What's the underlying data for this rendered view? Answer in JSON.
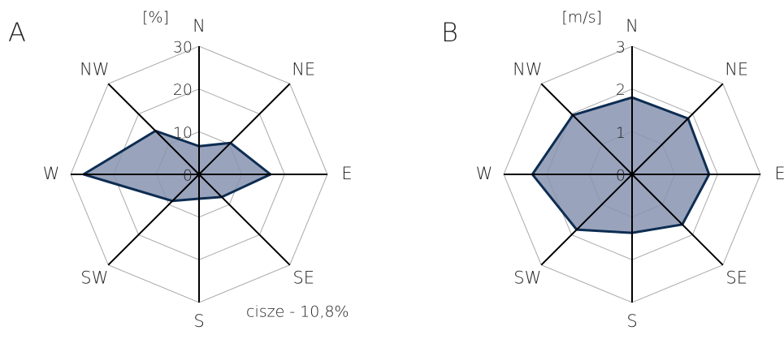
{
  "chart_data": [
    {
      "type": "radar",
      "title": "A",
      "unit": "[%]",
      "categories": [
        "N",
        "NE",
        "E",
        "SE",
        "S",
        "SW",
        "W",
        "NW"
      ],
      "values": [
        6.6,
        10.4,
        16.7,
        7.5,
        5.7,
        8.8,
        27,
        14.4
      ],
      "rlim": [
        0,
        30
      ],
      "rticks": [
        0,
        10,
        20,
        30
      ],
      "color": "#0d2d52",
      "fill": "#8793b0",
      "annotation": "cisze - 10,8%"
    },
    {
      "type": "radar",
      "title": "B",
      "unit": "[m/s]",
      "categories": [
        "N",
        "NE",
        "E",
        "SE",
        "S",
        "SW",
        "W",
        "NW"
      ],
      "values": [
        1.8,
        1.85,
        1.8,
        1.66,
        1.37,
        1.83,
        2.33,
        1.96
      ],
      "rlim": [
        0,
        3
      ],
      "rticks": [
        0,
        1,
        2,
        3
      ],
      "color": "#0d2d52",
      "fill": "#8793b0"
    }
  ]
}
